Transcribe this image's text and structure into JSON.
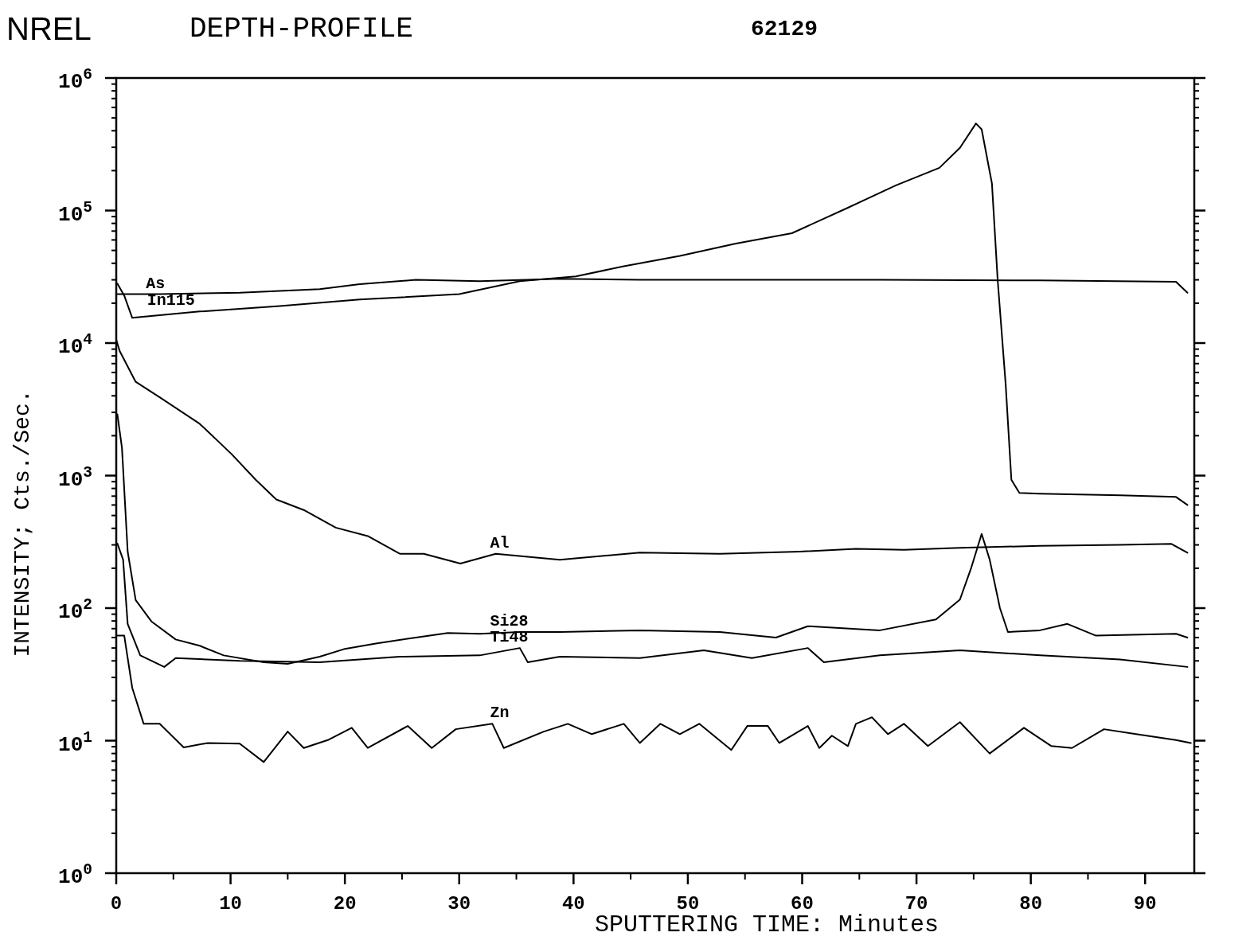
{
  "chart_data": {
    "type": "line",
    "title": "NREL",
    "subtitle": "DEPTH-PROFILE",
    "annotations": [
      "62129"
    ],
    "xlabel": "SPUTTERING TIME: Minutes",
    "ylabel": "INTENSITY; Cts./Sec.",
    "xlim": [
      0,
      94.3
    ],
    "xticks": [
      0,
      10,
      20,
      30,
      40,
      50,
      60,
      70,
      80,
      90
    ],
    "ylim": [
      1,
      1000000
    ],
    "log": "y",
    "yticks": [
      {
        "value": 1,
        "label": "10$^{0}$"
      },
      {
        "value": 10,
        "label": "10$^{1}$"
      },
      {
        "value": 100,
        "label": "10$^{2}$"
      },
      {
        "value": 1000,
        "label": "10$^{3}$"
      },
      {
        "value": 10000,
        "label": "10$^{4}$"
      },
      {
        "value": 100000,
        "label": "10$^{5}$"
      },
      {
        "value": 1000000,
        "label": "10$^{6}$"
      }
    ],
    "marker": "none",
    "line_style": "solid",
    "series": [
      {
        "name": "As",
        "color": "#000000",
        "x": [
          0.1,
          3.8,
          10.8,
          17.8,
          21.3,
          26.2,
          31.8,
          38.8,
          45.8,
          59.8,
          66.8,
          80.8,
          92.7,
          93.7
        ],
        "values": [
          23400,
          23400,
          24000,
          25500,
          27800,
          30000,
          29300,
          30600,
          30000,
          30000,
          30000,
          29700,
          29000,
          24000
        ]
      },
      {
        "name": "In115",
        "color": "#000000",
        "x": [
          0.1,
          0.7,
          1.4,
          7.3,
          14.3,
          21.3,
          30,
          35.3,
          40.2,
          44.4,
          49.3,
          54.2,
          59.1,
          64,
          68.2,
          72,
          73.8,
          75.2,
          75.7,
          76.6,
          77.1,
          77.8,
          78.3,
          79,
          80.8,
          87.8,
          92.7,
          93.7
        ],
        "values": [
          28100,
          22800,
          15500,
          17300,
          19000,
          21300,
          23400,
          29300,
          31800,
          38000,
          45400,
          56300,
          67400,
          105000,
          155000,
          210000,
          297000,
          454000,
          410000,
          160000,
          30000,
          4900,
          930,
          740,
          730,
          710,
          690,
          600
        ]
      },
      {
        "name": "Al",
        "color": "#000000",
        "x": [
          0,
          0.3,
          1.7,
          3.8,
          7.3,
          10.1,
          12.2,
          14,
          16.4,
          19.2,
          22,
          24.8,
          26.9,
          30.1,
          33.2,
          38.8,
          45.8,
          52.8,
          59.8,
          64.7,
          68.9,
          73.8,
          80.8,
          87.8,
          92.3,
          93.7
        ],
        "values": [
          10600,
          8700,
          5100,
          3900,
          2460,
          1450,
          930,
          660,
          550,
          405,
          350,
          257,
          257,
          217,
          257,
          232,
          262,
          257,
          267,
          280,
          275,
          285,
          295,
          300,
          305,
          262
        ]
      },
      {
        "name": "Si28",
        "color": "#000000",
        "x": [
          0.1,
          0.5,
          1,
          1.7,
          3.1,
          5.2,
          7.3,
          9.4,
          12.9,
          15,
          17.8,
          19.9,
          22.7,
          26.2,
          29,
          31.8,
          35.3,
          38.8,
          45.8,
          52.8,
          57.7,
          60.5,
          66.8,
          71.7,
          73.8,
          74.8,
          75.7,
          76.4,
          77.3,
          78,
          80.8,
          83.2,
          85.7,
          92.7,
          93.7
        ],
        "values": [
          2900,
          1620,
          267,
          115,
          79,
          58,
          52,
          44,
          39,
          38,
          43,
          49,
          54,
          60,
          65,
          64,
          66,
          66,
          68,
          66,
          60,
          73,
          68,
          82,
          116,
          203,
          363,
          233,
          100,
          66,
          68,
          76,
          62,
          64,
          60
        ]
      },
      {
        "name": "Ti48",
        "color": "#000000",
        "x": [
          0.1,
          0.6,
          1,
          2.1,
          4.2,
          5.2,
          10.8,
          17.8,
          24.8,
          31.8,
          35.3,
          36,
          38.8,
          45.8,
          51.4,
          55.6,
          60.5,
          61.9,
          66.8,
          73.8,
          80.8,
          87.8,
          93.7
        ],
        "values": [
          307,
          232,
          76,
          44,
          36,
          42,
          40,
          39,
          43,
          44,
          50,
          39,
          43,
          42,
          48,
          42,
          50,
          39,
          44,
          48,
          44,
          41,
          36
        ]
      },
      {
        "name": "Zn",
        "color": "#000000",
        "x": [
          0.1,
          0.7,
          1.4,
          2.4,
          3.8,
          5.9,
          8,
          10.8,
          12.9,
          15,
          16.4,
          18.5,
          20.6,
          22,
          25.5,
          27.6,
          29.7,
          32.9,
          33.9,
          37.4,
          39.5,
          41.6,
          44.4,
          45.8,
          47.6,
          49.3,
          51,
          53.8,
          55.2,
          57,
          58,
          60.5,
          61.5,
          62.6,
          64,
          64.7,
          66.1,
          67.5,
          68.9,
          71,
          73.8,
          76.4,
          79.4,
          81.8,
          83.6,
          86.4,
          89.2,
          92.7,
          94
        ],
        "values": [
          62,
          62,
          25,
          13.4,
          13.4,
          8.9,
          9.6,
          9.5,
          6.9,
          11.7,
          8.8,
          10.1,
          12.5,
          8.8,
          12.9,
          8.8,
          12.2,
          13.4,
          8.8,
          11.7,
          13.4,
          11.2,
          13.4,
          9.6,
          13.4,
          11.2,
          13.4,
          8.5,
          12.9,
          12.9,
          9.6,
          12.9,
          8.8,
          10.9,
          9.1,
          13.4,
          15,
          11.2,
          13.4,
          9.1,
          13.8,
          8,
          12.5,
          9.1,
          8.8,
          12.2,
          11.2,
          10.1,
          9.6
        ]
      }
    ]
  }
}
